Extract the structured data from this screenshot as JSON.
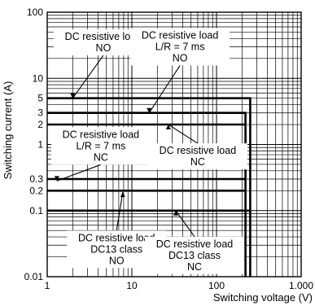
{
  "chart_data": {
    "type": "line",
    "x_scale": "log",
    "y_scale": "log",
    "xlim": [
      1,
      1000
    ],
    "ylim": [
      0.01,
      100
    ],
    "grid": true,
    "xlabel": "Switching voltage (V)",
    "ylabel": "Switching current (A)",
    "x_ticks": [
      {
        "value": 1,
        "label": "1"
      },
      {
        "value": 10,
        "label": "10"
      },
      {
        "value": 100,
        "label": "100"
      },
      {
        "value": 1000,
        "label": "1.000"
      }
    ],
    "y_ticks": [
      {
        "value": 0.01,
        "label": "0.01"
      },
      {
        "value": 0.1,
        "label": "0.1"
      },
      {
        "value": 0.2,
        "label": "0.2"
      },
      {
        "value": 0.3,
        "label": "0.3"
      },
      {
        "value": 1,
        "label": "1"
      },
      {
        "value": 2,
        "label": "2"
      },
      {
        "value": 3,
        "label": "3"
      },
      {
        "value": 5,
        "label": "5"
      },
      {
        "value": 10,
        "label": "10"
      },
      {
        "value": 100,
        "label": "100"
      }
    ],
    "series": [
      {
        "points": [
          [
            1,
            5
          ],
          [
            250,
            5
          ],
          [
            250,
            0.01
          ]
        ]
      },
      {
        "points": [
          [
            1,
            3
          ],
          [
            220,
            3
          ],
          [
            220,
            0.01
          ]
        ]
      },
      {
        "points": [
          [
            1,
            2
          ],
          [
            220,
            2
          ]
        ]
      },
      {
        "points": [
          [
            1,
            0.3
          ],
          [
            220,
            0.3
          ]
        ]
      },
      {
        "points": [
          [
            1,
            0.2
          ],
          [
            220,
            0.2
          ]
        ]
      },
      {
        "points": [
          [
            1,
            0.1
          ],
          [
            250,
            0.1
          ]
        ]
      }
    ],
    "annotations": [
      {
        "lines": [
          "DC resistive load",
          "NO"
        ],
        "at": [
          4.6,
          35
        ],
        "arrow_to": [
          2.0,
          5
        ]
      },
      {
        "lines": [
          "DC resistive load",
          "L/R = 7 ms",
          "NO"
        ],
        "at": [
          37,
          30
        ],
        "arrow_to": [
          16,
          3
        ]
      },
      {
        "lines": [
          "DC resistive load",
          "L/R = 7 ms",
          "NC"
        ],
        "at": [
          4.3,
          0.95
        ],
        "arrow_to": [
          1.3,
          0.28
        ]
      },
      {
        "lines": [
          "DC resistive load",
          "NC"
        ],
        "at": [
          60,
          0.66
        ],
        "arrow_to": [
          27,
          2
        ]
      },
      {
        "lines": [
          "DC resistive load",
          "DC13 class",
          "NO"
        ],
        "at": [
          6.6,
          0.026
        ],
        "arrow_to": [
          7.8,
          0.19
        ]
      },
      {
        "lines": [
          "DC resistive load",
          "DC13 class",
          "NC"
        ],
        "at": [
          55,
          0.021
        ],
        "arrow_to": [
          33,
          0.1
        ]
      }
    ]
  }
}
